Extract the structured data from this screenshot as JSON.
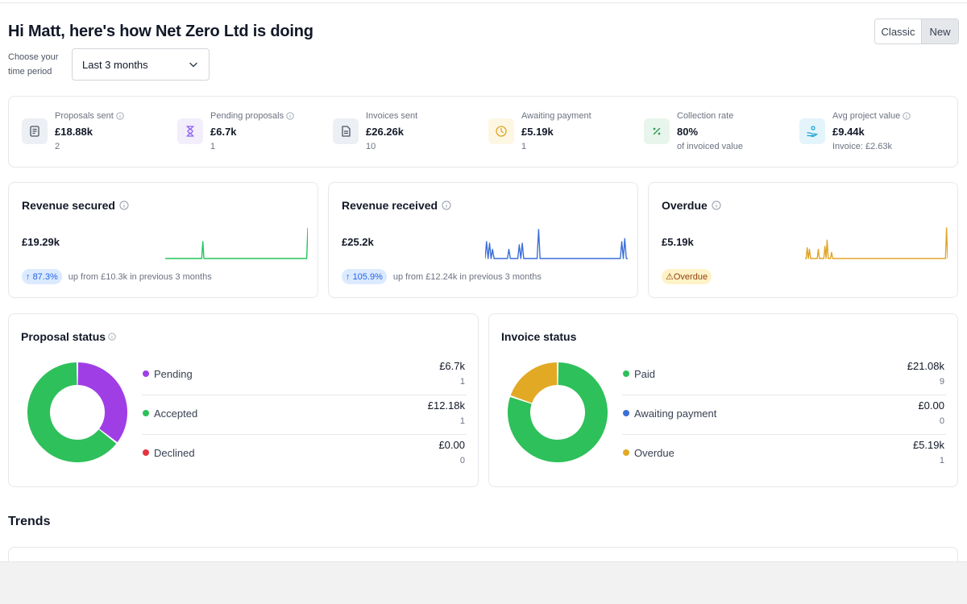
{
  "header": {
    "greeting": "Hi Matt, here's how Net Zero Ltd is doing",
    "period_label": "Choose your time period",
    "period_value": "Last 3 months",
    "view_toggle": {
      "classic": "Classic",
      "new": "New",
      "selected": "New"
    }
  },
  "kpis": [
    {
      "label": "Proposals sent",
      "value": "£18.88k",
      "sub": "2",
      "icon": "proposal-doc-icon",
      "icon_bg": "#eceff3",
      "icon_color": "#4b5563"
    },
    {
      "label": "Pending proposals",
      "value": "£6.7k",
      "sub": "1",
      "icon": "hourglass-icon",
      "icon_bg": "#f3eefb",
      "icon_color": "#8b5cf6"
    },
    {
      "label": "Invoices sent",
      "value": "£26.26k",
      "sub": "10",
      "icon": "invoice-doc-icon",
      "icon_bg": "#eceff3",
      "icon_color": "#4b5563"
    },
    {
      "label": "Awaiting payment",
      "value": "£5.19k",
      "sub": "1",
      "icon": "clock-icon",
      "icon_bg": "#fdf6e3",
      "icon_color": "#e0a526"
    },
    {
      "label": "Collection rate",
      "value": "80%",
      "sub": "of invoiced value",
      "icon": "percent-icon",
      "icon_bg": "#e8f5ec",
      "icon_color": "#2e9e55"
    },
    {
      "label": "Avg project value",
      "value": "£9.44k",
      "sub": "Invoice: £2.63k",
      "icon": "hand-coins-icon",
      "icon_bg": "#e4f4fb",
      "icon_color": "#16a3d6"
    }
  ],
  "revenue_cards": [
    {
      "title": "Revenue secured",
      "value": "£19.29k",
      "change": "87.3%",
      "change_text": "up from £10.3k in previous 3 months",
      "color": "#22c55e",
      "spark": [
        0,
        0,
        0,
        0,
        0,
        0,
        0,
        0,
        0,
        0,
        0,
        0,
        0,
        0,
        0,
        0,
        0,
        0,
        0,
        0,
        0,
        0,
        0,
        0,
        0,
        0,
        0,
        0,
        0,
        0,
        0,
        0,
        0,
        0,
        0.55,
        0,
        0,
        0,
        0,
        0,
        0,
        0,
        0,
        0,
        0,
        0,
        0,
        0,
        0,
        0,
        0,
        0,
        0,
        0,
        0,
        0,
        0,
        0,
        0,
        0,
        0,
        0,
        0,
        0,
        0,
        0,
        0,
        0,
        0,
        0,
        0,
        0,
        0,
        0,
        0,
        0,
        0,
        0,
        0,
        0,
        0,
        0,
        0,
        0,
        0,
        0,
        0,
        0,
        0,
        0,
        0,
        0,
        0,
        0,
        0,
        0,
        0,
        0,
        0,
        0,
        0,
        0,
        0,
        0,
        0,
        0,
        0,
        0,
        0,
        0,
        0,
        0,
        0,
        0,
        0,
        0,
        0,
        0,
        0,
        0,
        0,
        0,
        0,
        0,
        0,
        0,
        0,
        0,
        0,
        1
      ]
    },
    {
      "title": "Revenue received",
      "value": "£25.2k",
      "change": "105.9%",
      "change_text": "up from £12.24k in previous 3 months",
      "color": "#3b6fd8",
      "spark": [
        0,
        0.55,
        0,
        0.5,
        0,
        0.3,
        0,
        0,
        0,
        0,
        0,
        0,
        0,
        0,
        0,
        0,
        0.3,
        0,
        0,
        0,
        0,
        0,
        0,
        0.45,
        0,
        0.5,
        0,
        0,
        0,
        0,
        0,
        0,
        0,
        0,
        0,
        0,
        0.95,
        0,
        0,
        0,
        0,
        0,
        0,
        0,
        0,
        0,
        0,
        0,
        0,
        0,
        0,
        0,
        0,
        0,
        0,
        0,
        0,
        0,
        0,
        0,
        0,
        0,
        0,
        0,
        0,
        0,
        0,
        0,
        0,
        0,
        0,
        0,
        0,
        0,
        0,
        0,
        0,
        0,
        0,
        0,
        0,
        0,
        0,
        0,
        0,
        0,
        0,
        0,
        0,
        0,
        0,
        0,
        0.55,
        0,
        0.65,
        0,
        0
      ]
    },
    {
      "title": "Overdue",
      "value": "£5.19k",
      "status": "Overdue",
      "color": "#e0a526",
      "spark": [
        0,
        0,
        0.35,
        0,
        0.3,
        0,
        0,
        0,
        0,
        0,
        0,
        0,
        0.3,
        0,
        0,
        0,
        0,
        0,
        0.4,
        0,
        0.6,
        0,
        0,
        0,
        0.2,
        0,
        0,
        0,
        0,
        0,
        0,
        0,
        0,
        0,
        0,
        0,
        0,
        0,
        0,
        0,
        0,
        0,
        0,
        0,
        0,
        0,
        0,
        0,
        0,
        0,
        0,
        0,
        0,
        0,
        0,
        0,
        0,
        0,
        0,
        0,
        0,
        0,
        0,
        0,
        0,
        0,
        0,
        0,
        0,
        0,
        0,
        0,
        0,
        0,
        0,
        0,
        0,
        0,
        0,
        0,
        0,
        0,
        0,
        0,
        0,
        0,
        0,
        0,
        0,
        0,
        0,
        0,
        0,
        0,
        0,
        0,
        0,
        0,
        0,
        0,
        0,
        0,
        0,
        0,
        0,
        0,
        0,
        0,
        0,
        0,
        0,
        0,
        0,
        0,
        0,
        0,
        0,
        0,
        0,
        0,
        0,
        0,
        0,
        0,
        0,
        0,
        0,
        0,
        1,
        0
      ]
    }
  ],
  "proposal_status": {
    "title": "Proposal status",
    "items": [
      {
        "name": "Pending",
        "amount": "£6.7k",
        "count": "1",
        "value": 6.7,
        "color": "#a03ee6"
      },
      {
        "name": "Accepted",
        "amount": "£12.18k",
        "count": "1",
        "value": 12.18,
        "color": "#2ec05a"
      },
      {
        "name": "Declined",
        "amount": "£0.00",
        "count": "0",
        "value": 0,
        "color": "#e5333b"
      }
    ]
  },
  "invoice_status": {
    "title": "Invoice status",
    "items": [
      {
        "name": "Paid",
        "amount": "£21.08k",
        "count": "9",
        "value": 21.08,
        "color": "#2ec05a"
      },
      {
        "name": "Awaiting payment",
        "amount": "£0.00",
        "count": "0",
        "value": 0,
        "color": "#3b6fd8"
      },
      {
        "name": "Overdue",
        "amount": "£5.19k",
        "count": "1",
        "value": 5.19,
        "color": "#e2a925"
      }
    ]
  },
  "trends": {
    "title": "Trends"
  }
}
